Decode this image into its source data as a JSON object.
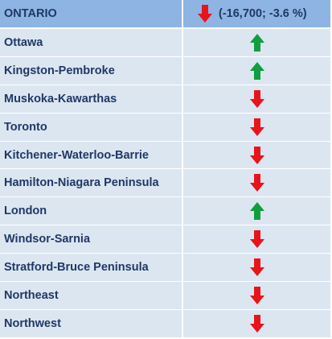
{
  "header": {
    "region": "ONTARIO",
    "direction": "down",
    "change": "(-16,700; -3.6 %)"
  },
  "colors": {
    "up": "#119e3e",
    "down": "#e8141b",
    "header_bg": "#8db4e2",
    "row_bg": "#dce6f1",
    "text": "#1f3864"
  },
  "rows": [
    {
      "name": "Ottawa",
      "direction": "up"
    },
    {
      "name": "Kingston-Pembroke",
      "direction": "up"
    },
    {
      "name": "Muskoka-Kawarthas",
      "direction": "down"
    },
    {
      "name": "Toronto",
      "direction": "down"
    },
    {
      "name": "Kitchener-Waterloo-Barrie",
      "direction": "down"
    },
    {
      "name": "Hamilton-Niagara Peninsula",
      "direction": "down"
    },
    {
      "name": "London",
      "direction": "up"
    },
    {
      "name": "Windsor-Sarnia",
      "direction": "down"
    },
    {
      "name": "Stratford-Bruce Peninsula",
      "direction": "down"
    },
    {
      "name": "Northeast",
      "direction": "down"
    },
    {
      "name": "Northwest",
      "direction": "down"
    }
  ]
}
